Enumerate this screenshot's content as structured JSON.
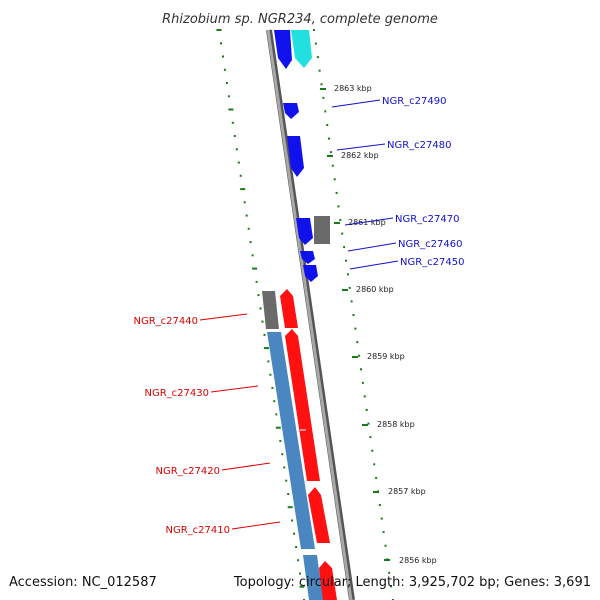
{
  "title": "Rhizobium sp. NGR234, complete genome",
  "accession": "Accession: NC_012587",
  "summary": "Topology: circular; Length: 3,925,702 bp; Genes: 3,691",
  "colors": {
    "backbone": "#888888",
    "tick": "#1a7a1a",
    "forward_label": "#1010cc",
    "reverse_label": "#dd0000",
    "gene_blue": "#1111ee",
    "gene_cyan": "#22e0e0",
    "gene_red": "#ff1111",
    "gene_gray": "#6a6a6a",
    "gene_steel": "#4a86bf"
  },
  "kbp_ticks": [
    "2863 kbp",
    "2862 kbp",
    "2861 kbp",
    "2860 kbp",
    "2859 kbp",
    "2858 kbp",
    "2857 kbp",
    "2856 kbp"
  ],
  "labels_right": [
    "NGR_c27490",
    "NGR_c27480",
    "NGR_c27470",
    "NGR_c27460",
    "NGR_c27450"
  ],
  "labels_left": [
    "NGR_c27440",
    "NGR_c27430",
    "NGR_c27420",
    "NGR_c27410"
  ]
}
